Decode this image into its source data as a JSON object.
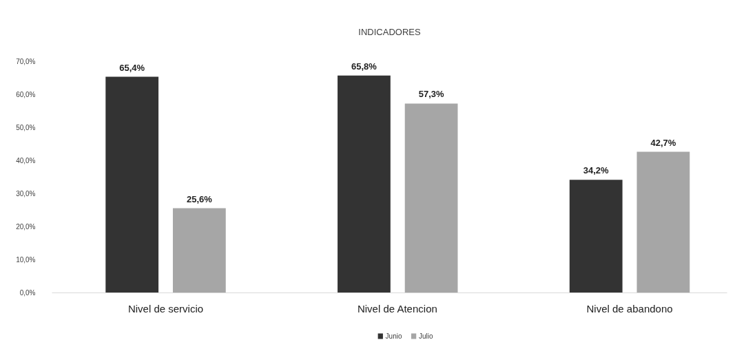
{
  "chart_data": {
    "type": "bar",
    "title": "INDICADORES",
    "categories": [
      "Nivel de servicio",
      "Nivel de Atencion",
      "Nivel de abandono"
    ],
    "series": [
      {
        "name": "Junio",
        "color": "#333333",
        "values": [
          65.4,
          65.8,
          34.2
        ],
        "value_labels": [
          "65,4%",
          "65,8%",
          "34,2%"
        ]
      },
      {
        "name": "Julio",
        "color": "#a6a6a6",
        "values": [
          25.6,
          57.3,
          42.7
        ],
        "value_labels": [
          "25,6%",
          "57,3%",
          "42,7%"
        ]
      }
    ],
    "ylim": [
      0,
      70
    ],
    "yticks": [
      {
        "value": 0,
        "label": "0,0%"
      },
      {
        "value": 10,
        "label": "10,0%"
      },
      {
        "value": 20,
        "label": "20,0%"
      },
      {
        "value": 30,
        "label": "30,0%"
      },
      {
        "value": 40,
        "label": "40,0%"
      },
      {
        "value": 50,
        "label": "50,0%"
      },
      {
        "value": 60,
        "label": "60,0%"
      },
      {
        "value": 70,
        "label": "70,0%"
      }
    ],
    "grid": false,
    "legend": "bottom"
  }
}
